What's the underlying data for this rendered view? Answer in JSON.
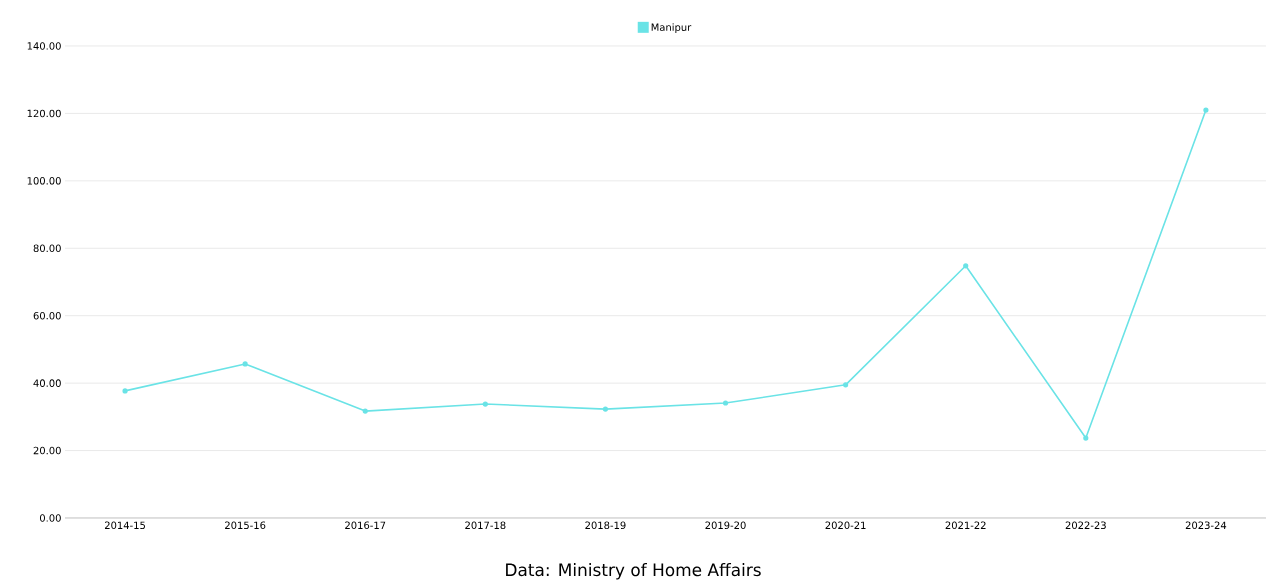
{
  "chart_data": {
    "type": "line",
    "categories": [
      "2014-15",
      "2015-16",
      "2016-17",
      "2017-18",
      "2018-19",
      "2019-20",
      "2020-21",
      "2021-22",
      "2022-23",
      "2023-24"
    ],
    "series": [
      {
        "name": "Manipur",
        "color": "#6ae3e6",
        "values": [
          37.7,
          45.7,
          31.7,
          33.8,
          32.3,
          34.1,
          39.5,
          74.8,
          23.7,
          121.0
        ]
      }
    ],
    "ylim": [
      0,
      140
    ],
    "yticks": [
      {
        "value": 0,
        "label": "0.00"
      },
      {
        "value": 20,
        "label": "20.00"
      },
      {
        "value": 40,
        "label": "40.00"
      },
      {
        "value": 60,
        "label": "60.00"
      },
      {
        "value": 80,
        "label": "80.00"
      },
      {
        "value": 100,
        "label": "100.00"
      },
      {
        "value": 120,
        "label": "120.00"
      },
      {
        "value": 140,
        "label": "140.00"
      }
    ],
    "grid": "y",
    "legend": "top",
    "marker": "circle",
    "line_style": "solid",
    "annotations": [
      "Data: Ministry of Home Affairs"
    ]
  }
}
